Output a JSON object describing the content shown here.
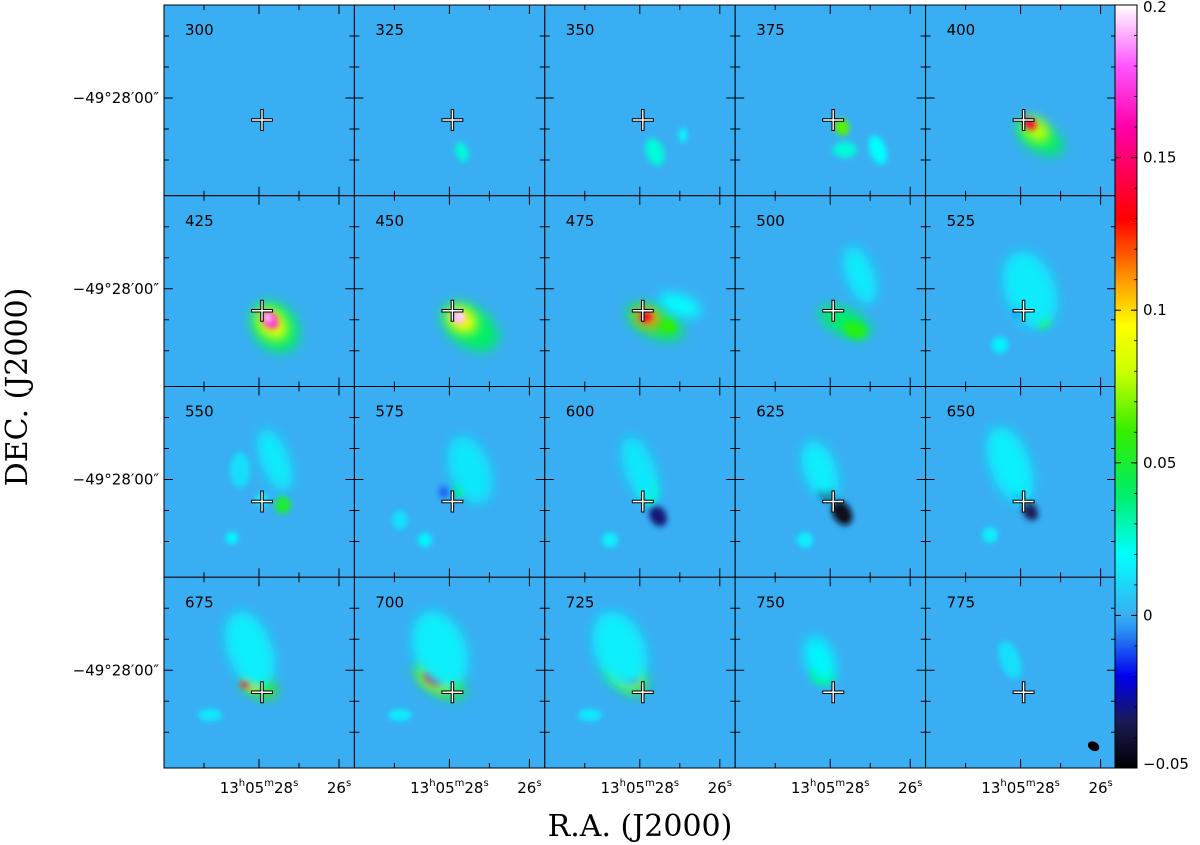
{
  "figure": {
    "xlabel": "R.A. (J2000)",
    "ylabel": "DEC. (J2000)",
    "dec_tick_label": "−49°28′00″",
    "ra_tick_major": {
      "h": "13",
      "m": "05",
      "s": "28"
    },
    "ra_tick_minor": "26"
  },
  "panels": [
    {
      "label": "300"
    },
    {
      "label": "325"
    },
    {
      "label": "350"
    },
    {
      "label": "375"
    },
    {
      "label": "400"
    },
    {
      "label": "425"
    },
    {
      "label": "450"
    },
    {
      "label": "475"
    },
    {
      "label": "500"
    },
    {
      "label": "525"
    },
    {
      "label": "550"
    },
    {
      "label": "575"
    },
    {
      "label": "600"
    },
    {
      "label": "625"
    },
    {
      "label": "650"
    },
    {
      "label": "675"
    },
    {
      "label": "700"
    },
    {
      "label": "725"
    },
    {
      "label": "750"
    },
    {
      "label": "775"
    }
  ],
  "colorbar": {
    "min": -0.05,
    "max": 0.2,
    "ticks": [
      {
        "value": 0.2,
        "label": "0.2"
      },
      {
        "value": 0.15,
        "label": "0.15"
      },
      {
        "value": 0.1,
        "label": "0.1"
      },
      {
        "value": 0.05,
        "label": "0.05"
      },
      {
        "value": 0,
        "label": "0"
      },
      {
        "value": -0.05,
        "label": "−0.05"
      }
    ],
    "stops": [
      {
        "value": -0.05,
        "color": "#000000"
      },
      {
        "value": -0.035,
        "color": "#1a1a55"
      },
      {
        "value": -0.02,
        "color": "#0000ee"
      },
      {
        "value": -0.005,
        "color": "#2a8ff5"
      },
      {
        "value": 0.0,
        "color": "#39aef2"
      },
      {
        "value": 0.02,
        "color": "#00ffff"
      },
      {
        "value": 0.04,
        "color": "#00ee66"
      },
      {
        "value": 0.06,
        "color": "#33ee00"
      },
      {
        "value": 0.08,
        "color": "#ccff00"
      },
      {
        "value": 0.095,
        "color": "#ffff00"
      },
      {
        "value": 0.11,
        "color": "#ff9900"
      },
      {
        "value": 0.13,
        "color": "#ff0000"
      },
      {
        "value": 0.16,
        "color": "#ff00aa"
      },
      {
        "value": 0.18,
        "color": "#ff55ff"
      },
      {
        "value": 0.2,
        "color": "#ffffff"
      }
    ],
    "background_color": "#39aef2"
  }
}
